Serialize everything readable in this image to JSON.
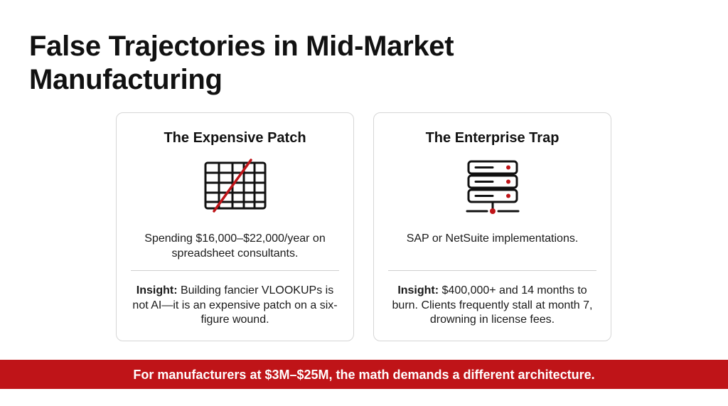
{
  "slide": {
    "title": "False Trajectories in Mid-Market Manufacturing"
  },
  "cards": [
    {
      "title": "The Expensive Patch",
      "icon": "crossed-out-spreadsheet-icon",
      "description": "Spending $16,000–$22,000/year on spreadsheet consultants.",
      "insight_label": "Insight:",
      "insight_text": " Building fancier VLOOKUPs is not AI—it is an expensive patch on a six-figure wound."
    },
    {
      "title": "The Enterprise Trap",
      "icon": "server-rack-icon",
      "description": "SAP or NetSuite implementations.",
      "insight_label": "Insight:",
      "insight_text": " $400,000+ and 14 months to burn. Clients frequently stall at month 7, drowning in license fees."
    }
  ],
  "banner": {
    "text": "For manufacturers at $3M–$25M, the math demands a different architecture."
  },
  "colors": {
    "accent_red": "#bf1418",
    "text_dark": "#111111",
    "card_border": "#d6d6d6"
  }
}
